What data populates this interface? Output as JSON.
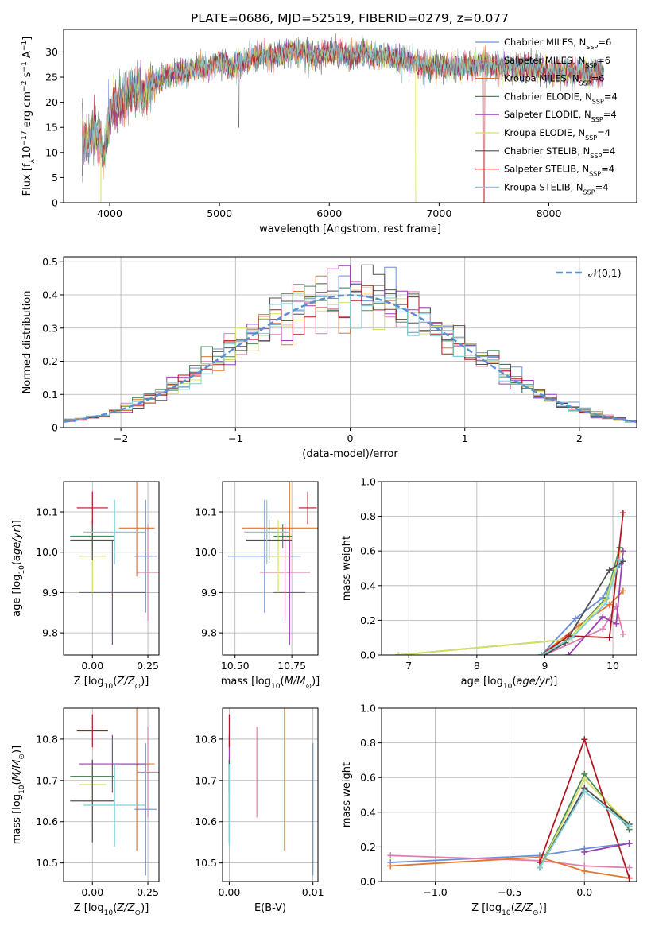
{
  "title": "PLATE=0686, MJD=52519, FIBERID=0279, z=0.077",
  "series": [
    {
      "name": "Chabrier MILES, N<sub>SSP</sub>=6",
      "color": "#6a8fd8",
      "Z": 0.24,
      "Zerr": 0.05,
      "age": 9.99,
      "ageErr": 0.14,
      "mass": 10.63,
      "massErr": 0.16,
      "ebv": 0.01,
      "ebvErr": 0.0,
      "ages": [
        8.95,
        9.45,
        9.85,
        10.1
      ],
      "wts": [
        0.0,
        0.21,
        0.33,
        0.52
      ],
      "Zs": [
        -1.3,
        -0.3,
        0.0,
        0.3
      ],
      "zw": [
        0.11,
        0.15,
        0.19,
        0.22
      ]
    },
    {
      "name": "Salpeter MILES, N<sub>SSP</sub>=6",
      "color": "#e07fae",
      "Z": 0.25,
      "Zerr": 0.05,
      "age": 9.95,
      "ageErr": 0.12,
      "mass": 10.72,
      "massErr": 0.11,
      "ebv": 0.0033,
      "ebvErr": 0.0,
      "ages": [
        9.0,
        9.85,
        10.05,
        10.15
      ],
      "wts": [
        0.0,
        0.15,
        0.28,
        0.12
      ],
      "Zs": [
        -1.3,
        -0.3,
        0.0,
        0.3
      ],
      "zw": [
        0.15,
        0.12,
        0.09,
        0.08
      ]
    },
    {
      "name": "Kroupa MILES, N<sub>SSP</sub>=6",
      "color": "#e1772e",
      "Z": 0.2,
      "Zerr": 0.08,
      "age": 10.06,
      "ageErr": 0.12,
      "mass": 10.74,
      "massErr": 0.21,
      "ebv": 0.0066,
      "ebvErr": 0.0,
      "ages": [
        8.95,
        9.5,
        9.95,
        10.15
      ],
      "wts": [
        0.0,
        0.17,
        0.29,
        0.37
      ],
      "Zs": [
        -1.3,
        -0.3,
        0.0,
        0.3
      ],
      "zw": [
        0.09,
        0.14,
        0.06,
        0.02
      ]
    },
    {
      "name": "Chabrier ELODIE, N<sub>SSP</sub>=4",
      "color": "#4a8a5a",
      "Z": 0.0,
      "Zerr": 0.1,
      "age": 10.04,
      "ageErr": 0.03,
      "mass": 10.71,
      "massErr": 0.04,
      "ebv": 0.0,
      "ebvErr": 0.0,
      "ages": [
        6.85,
        9.35,
        9.9,
        10.1
      ],
      "wts": [
        0.0,
        0.09,
        0.33,
        0.62
      ],
      "Zs": [
        -0.3,
        0.0,
        0.3
      ],
      "zw": [
        0.08,
        0.62,
        0.3
      ]
    },
    {
      "name": "Salpeter ELODIE, N<sub>SSP</sub>=4",
      "color": "#9b3fb5",
      "Z": 0.09,
      "Zerr": 0.15,
      "age": 9.9,
      "ageErr": 0.13,
      "mass": 10.74,
      "massErr": 0.07,
      "ebv": 0.0,
      "ebvErr": 0.0,
      "ages": [
        9.35,
        9.85,
        10.05,
        10.15
      ],
      "wts": [
        0.0,
        0.22,
        0.18,
        0.6
      ],
      "Zs": [
        0.0,
        0.3
      ],
      "zw": [
        0.17,
        0.22
      ]
    },
    {
      "name": "Kroupa ELODIE, N<sub>SSP</sub>=4",
      "color": "#d8e060",
      "Z": 0.0,
      "Zerr": 0.06,
      "age": 9.99,
      "ageErr": 0.09,
      "mass": 10.69,
      "massErr": 0.05,
      "ebv": 0.0,
      "ebvErr": 0.0,
      "ages": [
        6.85,
        9.35,
        9.9,
        10.1
      ],
      "wts": [
        0.0,
        0.09,
        0.32,
        0.59
      ],
      "Zs": [
        -0.3,
        0.0,
        0.3
      ],
      "zw": [
        0.08,
        0.59,
        0.33
      ]
    },
    {
      "name": "Chabrier STELIB, N<sub>SSP</sub>=4",
      "color": "#505050",
      "Z": 0.0,
      "Zerr": 0.1,
      "age": 10.03,
      "ageErr": 0.05,
      "mass": 10.65,
      "massErr": 0.1,
      "ebv": 0.0,
      "ebvErr": 0.0,
      "ages": [
        9.0,
        9.3,
        9.95,
        10.15
      ],
      "wts": [
        0.0,
        0.07,
        0.49,
        0.54
      ],
      "Zs": [
        -0.3,
        0.0,
        0.3
      ],
      "zw": [
        0.08,
        0.54,
        0.33
      ]
    },
    {
      "name": "Salpeter STELIB, N<sub>SSP</sub>=4",
      "color": "#b01820",
      "Z": 0.0,
      "Zerr": 0.07,
      "age": 10.11,
      "ageErr": 0.04,
      "mass": 10.82,
      "massErr": 0.04,
      "ebv": 0.0,
      "ebvErr": 0.0,
      "ages": [
        8.95,
        9.35,
        9.95,
        10.15
      ],
      "wts": [
        0.0,
        0.11,
        0.1,
        0.82
      ],
      "Zs": [
        -0.3,
        0.0,
        0.3
      ],
      "zw": [
        0.11,
        0.82,
        0.02
      ]
    },
    {
      "name": "Kroupa STELIB, N<sub>SSP</sub>=4",
      "color": "#7ed0d8",
      "Z": 0.1,
      "Zerr": 0.14,
      "age": 10.05,
      "ageErr": 0.08,
      "mass": 10.64,
      "massErr": 0.1,
      "ebv": 0.0,
      "ebvErr": 0.0,
      "ages": [
        8.95,
        9.4,
        9.9,
        10.1
      ],
      "wts": [
        0.0,
        0.1,
        0.3,
        0.55
      ],
      "Zs": [
        -0.3,
        0.0,
        0.3
      ],
      "zw": [
        0.08,
        0.52,
        0.32
      ]
    }
  ],
  "chart_data": [
    {
      "type": "line",
      "title": "PLATE=0686, MJD=52519, FIBERID=0279, z=0.077",
      "xlabel": "wavelength [Angstrom, rest frame]",
      "ylabel": "Flux [f<sub>λ</sub>10<sup>−17</sup> erg cm<sup>−2</sup> s<sup>−1</sup> A<sup>−1</sup>]",
      "xlim": [
        3580,
        8800
      ],
      "ylim": [
        0,
        34.5
      ],
      "xticks": [
        4000,
        5000,
        6000,
        7000,
        8000
      ],
      "yticks": [
        0,
        5,
        10,
        15,
        20,
        25,
        30
      ],
      "legend": "top-right",
      "spectrum_x": [
        3750,
        3800,
        3850,
        3900,
        3950,
        4000,
        4100,
        4200,
        4300,
        4400,
        4500,
        4600,
        4700,
        4800,
        4900,
        5000,
        5100,
        5200,
        5300,
        5400,
        5500,
        5600,
        5700,
        5800,
        5900,
        6000,
        6100,
        6200,
        6300,
        6400,
        6500,
        6600,
        6700,
        6800,
        6900,
        7000,
        7100,
        7200,
        7300,
        7400,
        7500,
        7600,
        7700,
        7800,
        7900,
        8000,
        8100,
        8200,
        8300,
        8400,
        8500
      ],
      "spectrum_y": [
        13,
        12,
        14,
        13,
        10,
        18,
        20,
        22,
        21,
        24,
        25,
        26,
        26,
        27,
        27,
        28,
        27,
        28,
        29,
        29,
        29,
        30,
        30,
        30,
        29,
        30,
        30,
        29,
        30,
        29,
        29,
        29,
        28,
        28,
        27,
        27,
        27,
        27,
        27,
        28,
        27,
        27,
        27,
        27,
        27,
        26,
        26,
        26,
        26,
        26,
        26
      ],
      "dips": [
        [
          3920,
          0
        ],
        [
          5175,
          15
        ],
        [
          6790,
          0
        ],
        [
          7410,
          0
        ]
      ]
    },
    {
      "type": "step",
      "xlabel": "(data-model)/error",
      "ylabel": "Normed distribution",
      "xlim": [
        -2.5,
        2.5
      ],
      "ylim": [
        0,
        0.515
      ],
      "xticks": [
        -2,
        -1,
        0,
        1,
        2
      ],
      "yticks": [
        0.0,
        0.1,
        0.2,
        0.3,
        0.4,
        0.5
      ],
      "legend": "top-right",
      "reference_label": "𝒩(0,1)",
      "bin_width": 0.1
    },
    {
      "type": "scatter",
      "xlabel": "Z [log<sub>10</sub>(<i>Z/Z<sub>⊙</sub></i>)]",
      "ylabel": "age  [log<sub>10</sub>(<i>age/yr</i>)]",
      "xlim": [
        -0.13,
        0.3
      ],
      "ylim": [
        9.745,
        10.175
      ],
      "xticks": [
        0.0,
        0.25
      ],
      "xticklabels": [
        "0.00",
        "0.25"
      ],
      "yticks": [
        9.8,
        9.9,
        10.0,
        10.1
      ],
      "yticklabels": [
        "9.8",
        "9.9",
        "10.0",
        "10.1"
      ]
    },
    {
      "type": "scatter",
      "xlabel": "mass [log<sub>10</sub>(<i>M/M<sub>⊙</sub></i>)]",
      "xlim": [
        10.445,
        10.865
      ],
      "ylim": [
        9.745,
        10.175
      ],
      "xticks": [
        10.5,
        10.75
      ],
      "xticklabels": [
        "10.50",
        "10.75"
      ],
      "yticks": [
        9.8,
        9.9,
        10.0,
        10.1
      ],
      "yticklabels": [
        "9.8",
        "9.9",
        "10.0",
        "10.1"
      ]
    },
    {
      "type": "line",
      "xlabel": "age  [log<sub>10</sub>(<i>age/yr</i>)]",
      "ylabel": "mass weight",
      "xlim": [
        6.6,
        10.35
      ],
      "ylim": [
        0,
        1.0
      ],
      "xticks": [
        7,
        8,
        9,
        10
      ],
      "xticklabels": [
        "7",
        "8",
        "9",
        "10"
      ],
      "yticks": [
        0,
        0.2,
        0.4,
        0.6,
        0.8,
        1.0
      ],
      "yticklabels": [
        "0.0",
        "0.2",
        "0.4",
        "0.6",
        "0.8",
        "1.0"
      ]
    },
    {
      "type": "scatter",
      "xlabel": "Z [log<sub>10</sub>(<i>Z/Z<sub>⊙</sub></i>)]",
      "ylabel": "mass [log<sub>10</sub>(<i>M/M<sub>⊙</sub></i>)]",
      "xlim": [
        -0.13,
        0.3
      ],
      "ylim": [
        10.455,
        10.875
      ],
      "xticks": [
        0.0,
        0.25
      ],
      "xticklabels": [
        "0.00",
        "0.25"
      ],
      "yticks": [
        10.5,
        10.6,
        10.7,
        10.8
      ],
      "yticklabels": [
        "10.5",
        "10.6",
        "10.7",
        "10.8"
      ]
    },
    {
      "type": "scatter",
      "xlabel": "E(B-V)",
      "xlim": [
        -0.0008,
        0.0106
      ],
      "ylim": [
        10.455,
        10.875
      ],
      "xticks": [
        0.0,
        0.01
      ],
      "xticklabels": [
        "0.00",
        "0.01"
      ],
      "yticks": [
        10.5,
        10.6,
        10.7,
        10.8
      ],
      "yticklabels": [
        "10.5",
        "10.6",
        "10.7",
        "10.8"
      ]
    },
    {
      "type": "line",
      "xlabel": "Z [log<sub>10</sub>(<i>Z/Z<sub>⊙</sub></i>)]",
      "ylabel": "mass weight",
      "xlim": [
        -1.36,
        0.35
      ],
      "ylim": [
        0,
        1.0
      ],
      "xticks": [
        -1.0,
        -0.5,
        0.0
      ],
      "xticklabels": [
        "−1.0",
        "−0.5",
        "0.0"
      ],
      "yticks": [
        0,
        0.2,
        0.4,
        0.6,
        0.8,
        1.0
      ],
      "yticklabels": [
        "0.0",
        "0.2",
        "0.4",
        "0.6",
        "0.8",
        "1.0"
      ]
    }
  ]
}
